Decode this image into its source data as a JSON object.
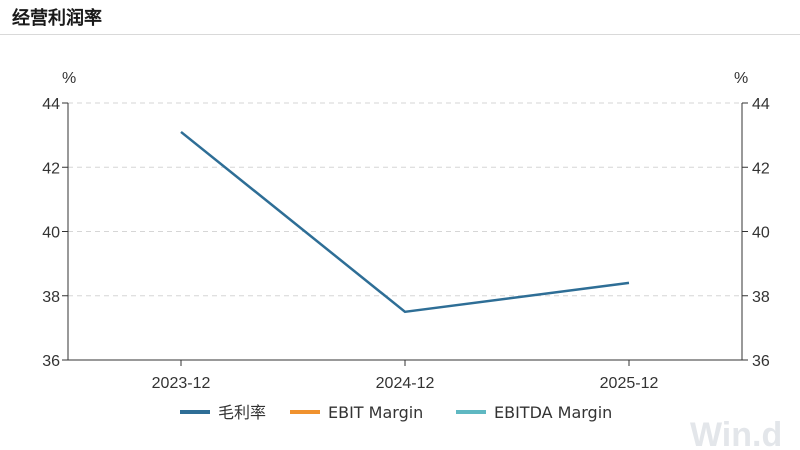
{
  "header": {
    "title": "经营利润率"
  },
  "watermark": "Win.d",
  "chart_data": {
    "type": "line",
    "categories": [
      "2023-12",
      "2024-12",
      "2025-12"
    ],
    "series": [
      {
        "name": "毛利率",
        "color": "#2E6E96",
        "values": [
          43.1,
          37.5,
          38.4
        ]
      },
      {
        "name": "EBIT Margin",
        "color": "#F0922E",
        "values": [
          null,
          null,
          null
        ]
      },
      {
        "name": "EBITDA Margin",
        "color": "#5FB8C2",
        "values": [
          null,
          null,
          null
        ]
      }
    ],
    "y_unit_left": "%",
    "y_unit_right": "%",
    "ylim": [
      36,
      44
    ],
    "yticks": [
      36,
      38,
      40,
      42,
      44
    ],
    "grid": true,
    "legend_position": "bottom"
  }
}
